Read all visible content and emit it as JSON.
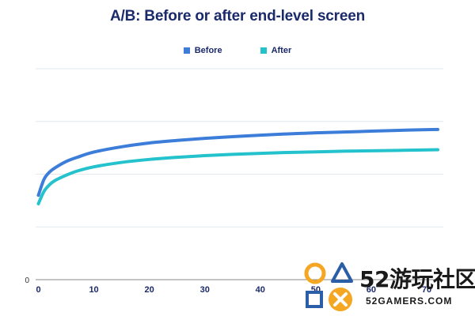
{
  "chart_data": {
    "type": "line",
    "title": "A/B: Before or after end-level screen",
    "xlabel": "",
    "ylabel": "",
    "x_ticks": [
      0,
      10,
      20,
      30,
      40,
      50,
      60,
      70
    ],
    "y_ticks_shown": [
      "0"
    ],
    "xlim": [
      -0.5,
      73
    ],
    "ylim": [
      0,
      100
    ],
    "grid": true,
    "legend_position": "top-center",
    "series": [
      {
        "name": "Before",
        "color": "#3b7dd8",
        "x": [
          0,
          1,
          2,
          3,
          5,
          7,
          10,
          15,
          20,
          25,
          30,
          35,
          40,
          45,
          50,
          55,
          60,
          65,
          70,
          72
        ],
        "y": [
          40.0,
          47.5,
          51.0,
          53.0,
          56.0,
          58.0,
          60.5,
          63.0,
          64.8,
          66.0,
          67.0,
          67.8,
          68.5,
          69.1,
          69.6,
          70.0,
          70.4,
          70.8,
          71.1,
          71.2
        ]
      },
      {
        "name": "After",
        "color": "#23c2cc",
        "x": [
          0,
          1,
          2,
          3,
          5,
          7,
          10,
          15,
          20,
          25,
          30,
          35,
          40,
          45,
          50,
          55,
          60,
          65,
          70,
          72
        ],
        "y": [
          36.0,
          41.8,
          45.0,
          47.0,
          49.5,
          51.5,
          53.5,
          55.6,
          57.0,
          58.0,
          58.8,
          59.4,
          59.9,
          60.3,
          60.6,
          60.9,
          61.1,
          61.3,
          61.5,
          61.6
        ]
      }
    ]
  },
  "watermark": {
    "brand": "52游玩社区",
    "site": "52GAMERS.COM"
  }
}
